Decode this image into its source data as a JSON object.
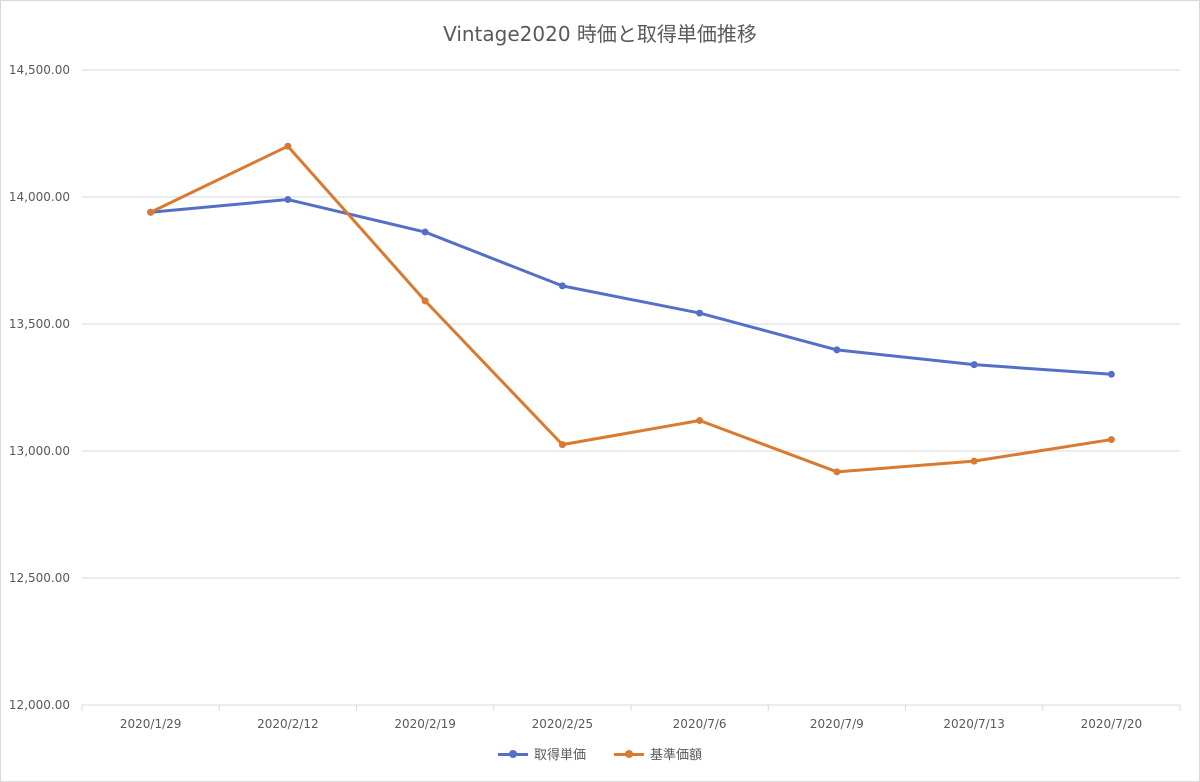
{
  "chart_data": {
    "type": "line",
    "title": "Vintage2020 時価と取得単価推移",
    "categories": [
      "2020/1/29",
      "2020/2/12",
      "2020/2/19",
      "2020/2/25",
      "2020/7/6",
      "2020/7/9",
      "2020/7/13",
      "2020/7/20"
    ],
    "series": [
      {
        "name": "取得単価",
        "color": "#5470c6",
        "values": [
          13940,
          13990,
          13862,
          13650,
          13543,
          13398,
          13340,
          13302
        ]
      },
      {
        "name": "基準価額",
        "color": "#d97a30",
        "values": [
          13940,
          14200,
          13591,
          13025,
          13120,
          12918,
          12960,
          13045
        ]
      }
    ],
    "ylim": [
      12000,
      14500
    ],
    "yticks": [
      "12,000.00",
      "12,500.00",
      "13,000.00",
      "13,500.00",
      "14,000.00",
      "14,500.00"
    ],
    "ytick_values": [
      12000,
      12500,
      13000,
      13500,
      14000,
      14500
    ],
    "grid": true,
    "legend_position": "bottom"
  }
}
